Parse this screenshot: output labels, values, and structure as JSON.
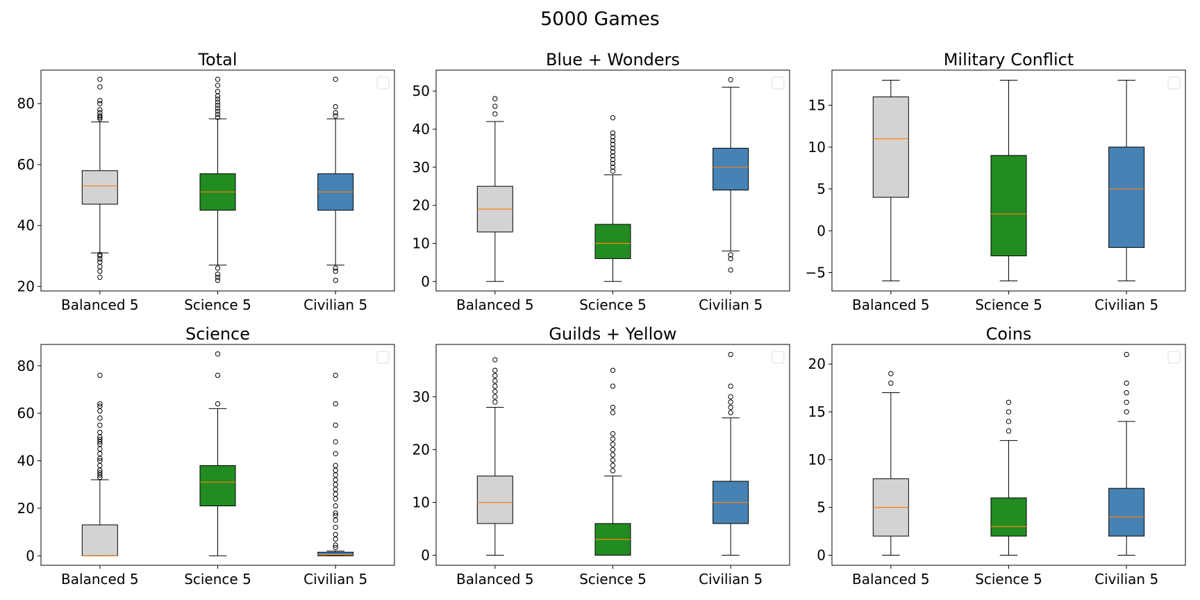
{
  "figure": {
    "suptitle": "5000 Games"
  },
  "colors": {
    "Balanced 5": "#d3d3d3",
    "Science 5": "#228b22",
    "Civilian 5": "#4682b4",
    "median": "#ff7f0e"
  },
  "chart_data": [
    {
      "type": "box",
      "title": "Total",
      "categories": [
        "Balanced 5",
        "Science 5",
        "Civilian 5"
      ],
      "ylim": [
        18.5,
        91
      ],
      "yticks": [
        20,
        40,
        60,
        80
      ],
      "legend": "top-right (empty)",
      "boxes": [
        {
          "whislo": 31,
          "q1": 47,
          "med": 53,
          "q3": 58,
          "whishi": 74,
          "fliers": [
            23,
            25,
            26.5,
            28,
            29,
            30,
            30.5,
            75,
            75.5,
            76,
            77,
            78,
            80,
            81,
            85.5,
            88
          ]
        },
        {
          "whislo": 27,
          "q1": 45,
          "med": 51,
          "q3": 57,
          "whishi": 75,
          "fliers": [
            22,
            23,
            24,
            26,
            75.5,
            76.5,
            77.5,
            78.5,
            79.5,
            80.5,
            81.5,
            82.5,
            84,
            86,
            88
          ]
        },
        {
          "whislo": 27,
          "q1": 45,
          "med": 51,
          "q3": 57,
          "whishi": 75,
          "fliers": [
            22,
            25,
            26,
            76,
            77,
            79,
            88
          ]
        }
      ]
    },
    {
      "type": "box",
      "title": "Blue + Wonders",
      "categories": [
        "Balanced 5",
        "Science 5",
        "Civilian 5"
      ],
      "ylim": [
        -2.5,
        55.5
      ],
      "yticks": [
        0,
        10,
        20,
        30,
        40,
        50
      ],
      "legend": "top-right (empty)",
      "boxes": [
        {
          "whislo": 0,
          "q1": 13,
          "med": 19,
          "q3": 25,
          "whishi": 42,
          "fliers": [
            44,
            46,
            48
          ]
        },
        {
          "whislo": 0,
          "q1": 6,
          "med": 10,
          "q3": 15,
          "whishi": 28,
          "fliers": [
            29,
            30,
            31,
            32,
            33,
            34,
            35,
            36,
            37,
            38,
            39,
            43
          ]
        },
        {
          "whislo": 8,
          "q1": 24,
          "med": 30,
          "q3": 35,
          "whishi": 51,
          "fliers": [
            3,
            6,
            7,
            53
          ]
        }
      ]
    },
    {
      "type": "box",
      "title": "Military Conflict",
      "categories": [
        "Balanced 5",
        "Science 5",
        "Civilian 5"
      ],
      "ylim": [
        -7.2,
        19.2
      ],
      "yticks": [
        -5,
        0,
        5,
        10,
        15
      ],
      "legend": "top-right (empty)",
      "boxes": [
        {
          "whislo": -6,
          "q1": 4,
          "med": 11,
          "q3": 16,
          "whishi": 18,
          "fliers": []
        },
        {
          "whislo": -6,
          "q1": -3,
          "med": 2,
          "q3": 9,
          "whishi": 18,
          "fliers": []
        },
        {
          "whislo": -6,
          "q1": -2,
          "med": 5,
          "q3": 10,
          "whishi": 18,
          "fliers": []
        }
      ]
    },
    {
      "type": "box",
      "title": "Science",
      "categories": [
        "Balanced 5",
        "Science 5",
        "Civilian 5"
      ],
      "ylim": [
        -4,
        89
      ],
      "yticks": [
        0,
        20,
        40,
        60,
        80
      ],
      "legend": "top-right (empty)",
      "boxes": [
        {
          "whislo": 0,
          "q1": 0,
          "med": 0,
          "q3": 13,
          "whishi": 32,
          "fliers": [
            33,
            34,
            35,
            36,
            38,
            40,
            41,
            43,
            45,
            47,
            48,
            49,
            50,
            52,
            55,
            58,
            61,
            63,
            64,
            76
          ]
        },
        {
          "whislo": 0,
          "q1": 21,
          "med": 31,
          "q3": 38,
          "whishi": 62,
          "fliers": [
            64,
            76,
            85
          ]
        },
        {
          "whislo": 0,
          "q1": 0,
          "med": 0.5,
          "q3": 1.5,
          "whishi": 2,
          "fliers": [
            3.5,
            4.5,
            7,
            9,
            12,
            15,
            17,
            18,
            21,
            24,
            26,
            28,
            30,
            32,
            34,
            36,
            38,
            43,
            48,
            55,
            64,
            76
          ]
        }
      ]
    },
    {
      "type": "box",
      "title": "Guilds + Yellow",
      "categories": [
        "Balanced 5",
        "Science 5",
        "Civilian 5"
      ],
      "ylim": [
        -1.9,
        39.9
      ],
      "yticks": [
        0,
        10,
        20,
        30
      ],
      "legend": "top-right (empty)",
      "boxes": [
        {
          "whislo": 0,
          "q1": 6,
          "med": 10,
          "q3": 15,
          "whishi": 28,
          "fliers": [
            29,
            30,
            31,
            32,
            33,
            34,
            35,
            37
          ]
        },
        {
          "whislo": 0,
          "q1": 0,
          "med": 3,
          "q3": 6,
          "whishi": 15,
          "fliers": [
            16,
            17,
            18,
            19,
            20,
            21,
            22,
            23,
            27,
            28,
            32,
            35
          ]
        },
        {
          "whislo": 0,
          "q1": 6,
          "med": 10,
          "q3": 14,
          "whishi": 26,
          "fliers": [
            27,
            28,
            29,
            30,
            32,
            38
          ]
        }
      ]
    },
    {
      "type": "box",
      "title": "Coins",
      "categories": [
        "Balanced 5",
        "Science 5",
        "Civilian 5"
      ],
      "ylim": [
        -1.05,
        22.05
      ],
      "yticks": [
        0,
        5,
        10,
        15,
        20
      ],
      "legend": "top-right (empty)",
      "boxes": [
        {
          "whislo": 0,
          "q1": 2,
          "med": 5,
          "q3": 8,
          "whishi": 17,
          "fliers": [
            18,
            19
          ]
        },
        {
          "whislo": 0,
          "q1": 2,
          "med": 3,
          "q3": 6,
          "whishi": 12,
          "fliers": [
            13,
            14,
            15,
            16
          ]
        },
        {
          "whislo": 0,
          "q1": 2,
          "med": 4,
          "q3": 7,
          "whishi": 14,
          "fliers": [
            15,
            16,
            17,
            18,
            21
          ]
        }
      ]
    }
  ]
}
